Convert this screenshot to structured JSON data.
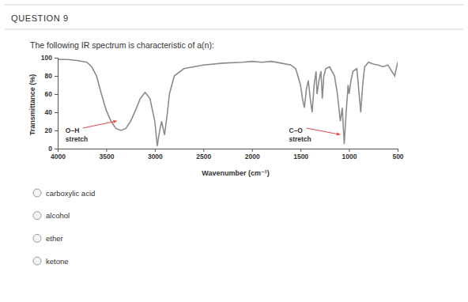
{
  "header": {
    "title": "QUESTION 9"
  },
  "question": {
    "text": "The following IR spectrum is characteristic of a(n):"
  },
  "options": [
    "carboxylic acid",
    "alcohol",
    "ether",
    "ketone"
  ],
  "chart_data": {
    "type": "line",
    "x_label": "Wavenumber (cm⁻¹)",
    "y_label": "Transmittance (%)",
    "color": "#8c8c8c",
    "grid": false,
    "xlim": [
      4000,
      500
    ],
    "xticks": [
      4000,
      3500,
      3000,
      2500,
      2000,
      1500,
      1000,
      500
    ],
    "ylim": [
      0,
      100
    ],
    "yticks": [
      0,
      20,
      40,
      60,
      80,
      100
    ],
    "x": [
      4000,
      3900,
      3800,
      3700,
      3650,
      3600,
      3550,
      3500,
      3450,
      3400,
      3350,
      3300,
      3250,
      3200,
      3150,
      3100,
      3050,
      3000,
      2975,
      2950,
      2930,
      2900,
      2870,
      2850,
      2800,
      2700,
      2600,
      2500,
      2300,
      2100,
      2000,
      1900,
      1800,
      1700,
      1600,
      1550,
      1500,
      1480,
      1460,
      1440,
      1420,
      1400,
      1380,
      1360,
      1340,
      1330,
      1310,
      1290,
      1275,
      1260,
      1240,
      1200,
      1150,
      1120,
      1090,
      1070,
      1050,
      1030,
      1010,
      1000,
      980,
      960,
      920,
      880,
      860,
      840,
      800,
      750,
      700,
      650,
      600,
      560,
      530,
      510,
      500
    ],
    "values": [
      98,
      98,
      97,
      95,
      90,
      80,
      60,
      42,
      30,
      22,
      20,
      22,
      30,
      42,
      55,
      62,
      55,
      30,
      3,
      20,
      30,
      15,
      40,
      60,
      80,
      88,
      90,
      92,
      94,
      95,
      96,
      95,
      96,
      94,
      92,
      88,
      70,
      55,
      45,
      65,
      75,
      55,
      40,
      70,
      85,
      60,
      75,
      85,
      55,
      80,
      88,
      90,
      80,
      60,
      30,
      45,
      5,
      40,
      70,
      60,
      75,
      85,
      88,
      40,
      70,
      90,
      95,
      93,
      92,
      90,
      92,
      85,
      80,
      90,
      95
    ],
    "annotations": [
      {
        "lines": [
          "O–H",
          "stretch"
        ],
        "x": 3350,
        "y": 20,
        "color": "#e0504f"
      },
      {
        "lines": [
          "C–O",
          "stretch"
        ],
        "x": 1050,
        "y": 5,
        "color": "#e0504f"
      }
    ]
  }
}
